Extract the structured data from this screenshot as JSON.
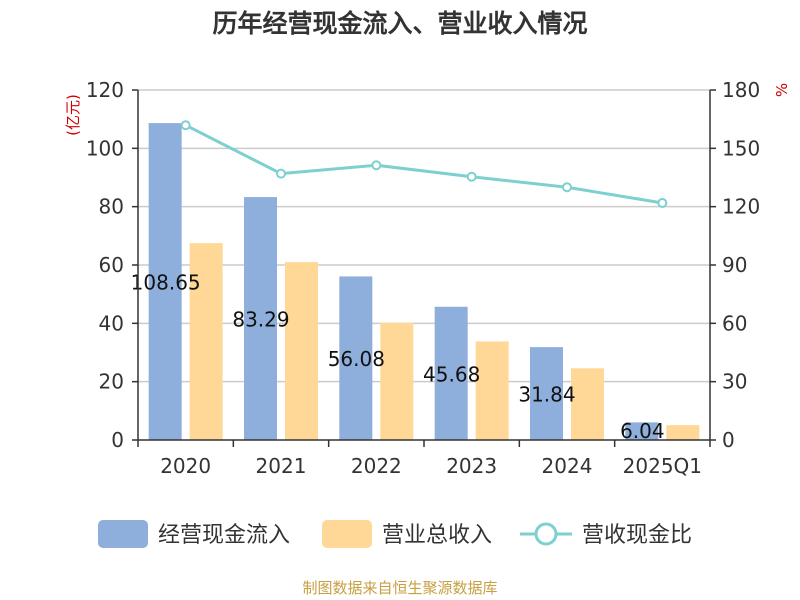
{
  "chart_data": {
    "type": "bar",
    "title": "历年经营现金流入、营业收入情况",
    "left_unit": "(亿元)",
    "right_unit": "%",
    "categories": [
      "2020",
      "2021",
      "2022",
      "2023",
      "2024",
      "2025Q1"
    ],
    "series": [
      {
        "name": "经营现金流入",
        "type": "bar",
        "axis": "left",
        "color": "#8eaedb",
        "values": [
          108.65,
          83.29,
          56.08,
          45.68,
          31.84,
          6.04
        ],
        "labels": [
          "108.65",
          "83.29",
          "56.08",
          "45.68",
          "31.84",
          "6.04"
        ]
      },
      {
        "name": "营业总收入",
        "type": "bar",
        "axis": "left",
        "color": "#ffd898",
        "values": [
          67.5,
          61.0,
          40.2,
          33.8,
          24.6,
          5.1
        ]
      },
      {
        "name": "营收现金比",
        "type": "line",
        "axis": "right",
        "color": "#7ed0d0",
        "values": [
          161.9,
          137.0,
          141.3,
          135.4,
          130.0,
          121.9
        ]
      }
    ],
    "left_axis": {
      "min": 0,
      "max": 120,
      "ticks": [
        "0",
        "20",
        "40",
        "60",
        "80",
        "100",
        "120"
      ]
    },
    "right_axis": {
      "min": 0,
      "max": 180,
      "ticks": [
        "0",
        "30",
        "60",
        "90",
        "120",
        "150",
        "180"
      ]
    },
    "grid": true,
    "legend_position": "bottom"
  },
  "source": "制图数据来自恒生聚源数据库"
}
